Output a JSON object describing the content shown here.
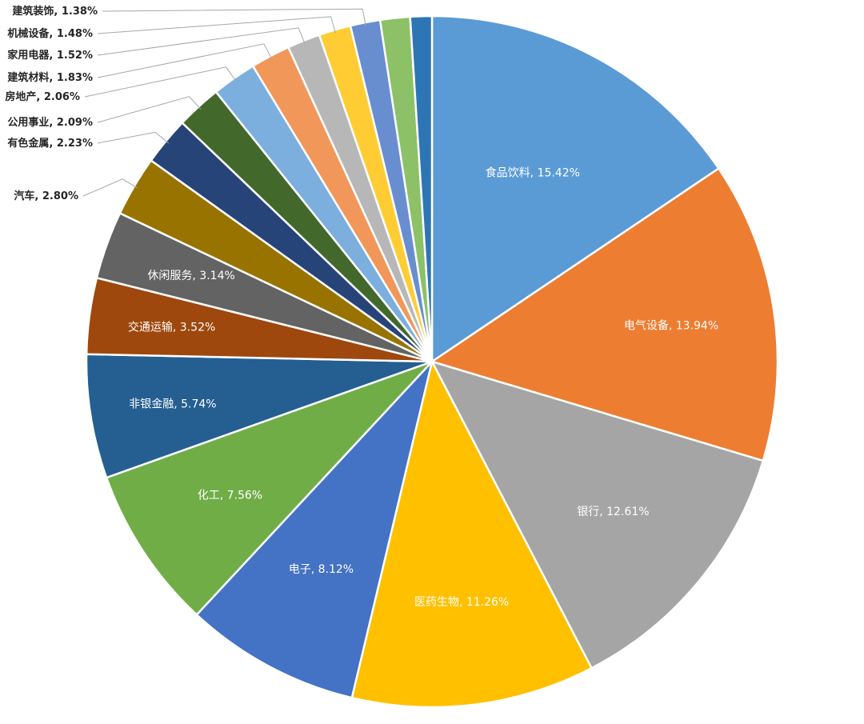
{
  "chart_data": {
    "type": "pie",
    "title": "",
    "start_angle_deg": 0,
    "direction": "clockwise",
    "slices": [
      {
        "name": "食品饮料",
        "value": 15.42,
        "label": "食品饮料, 15.42%",
        "color": "#5b9bd5",
        "label_position": "inside"
      },
      {
        "name": "电气设备",
        "value": 13.94,
        "label": "电气设备, 13.94%",
        "color": "#ed7d31",
        "label_position": "inside"
      },
      {
        "name": "银行",
        "value": 12.61,
        "label": "银行, 12.61%",
        "color": "#a5a5a5",
        "label_position": "inside"
      },
      {
        "name": "医药生物",
        "value": 11.26,
        "label": "医药生物, 11.26%",
        "color": "#ffc000",
        "label_position": "inside"
      },
      {
        "name": "电子",
        "value": 8.12,
        "label": "电子, 8.12%",
        "color": "#4472c4",
        "label_position": "inside"
      },
      {
        "name": "化工",
        "value": 7.56,
        "label": "化工, 7.56%",
        "color": "#70ad47",
        "label_position": "inside"
      },
      {
        "name": "非银金融",
        "value": 5.74,
        "label": "非银金融, 5.74%",
        "color": "#255e91",
        "label_position": "inside"
      },
      {
        "name": "交通运输",
        "value": 3.52,
        "label": "交通运输, 3.52%",
        "color": "#9e480e",
        "label_position": "inside"
      },
      {
        "name": "休闲服务",
        "value": 3.14,
        "label": "休闲服务, 3.14%",
        "color": "#636363",
        "label_position": "inside"
      },
      {
        "name": "汽车",
        "value": 2.8,
        "label": "汽车, 2.80%",
        "color": "#997300",
        "label_position": "outside"
      },
      {
        "name": "有色金属",
        "value": 2.23,
        "label": "有色金属, 2.23%",
        "color": "#264478",
        "label_position": "outside"
      },
      {
        "name": "公用事业",
        "value": 2.09,
        "label": "公用事业, 2.09%",
        "color": "#43682b",
        "label_position": "outside"
      },
      {
        "name": "房地产",
        "value": 2.06,
        "label": "房地产, 2.06%",
        "color": "#7cafdd",
        "label_position": "outside"
      },
      {
        "name": "建筑材料",
        "value": 1.83,
        "label": "建筑材料, 1.83%",
        "color": "#f1975a",
        "label_position": "outside"
      },
      {
        "name": "家用电器",
        "value": 1.52,
        "label": "家用电器, 1.52%",
        "color": "#b7b7b7",
        "label_position": "outside"
      },
      {
        "name": "机械设备",
        "value": 1.48,
        "label": "机械设备, 1.48%",
        "color": "#ffcd33",
        "label_position": "outside"
      },
      {
        "name": "建筑装饰",
        "value": 1.38,
        "label": "建筑装饰, 1.38%",
        "color": "#698ed0",
        "label_position": "outside"
      },
      {
        "name": "",
        "value": 1.38,
        "label": "",
        "color": "#8cc168",
        "label_position": "none"
      },
      {
        "name": "",
        "value": 1.0,
        "label": "",
        "color": "#2e75b6",
        "label_position": "none"
      }
    ]
  }
}
